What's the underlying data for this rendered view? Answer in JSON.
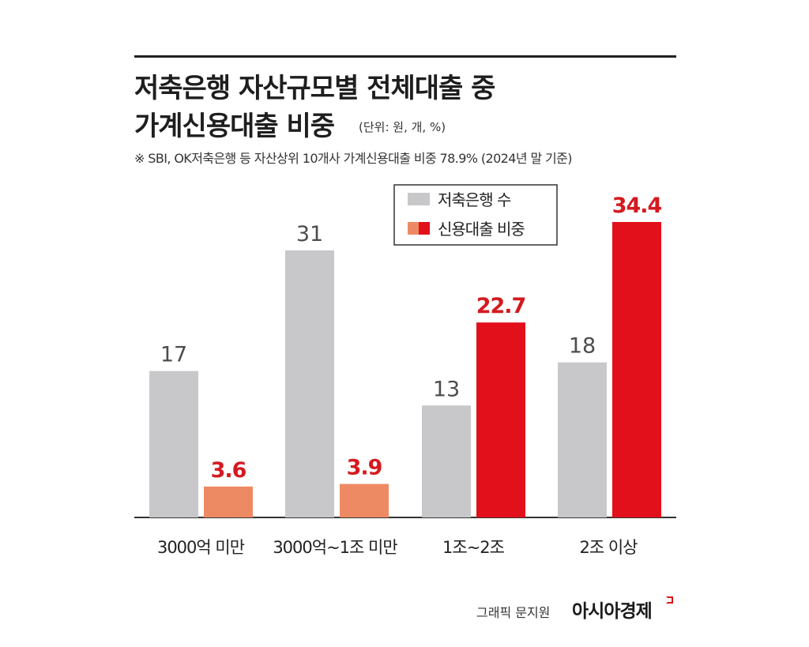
{
  "title_line1": "저축은행 자산규모별 전체대출 중",
  "title_line2": "가계신용대출 비중",
  "unit_note": "(단위: 원, 개, %)",
  "footnote": "※ SBI, OK저축은행 등 자산상위 10개사 가계신용대출 비중 78.9% (2024년 말 기준)",
  "credit": "그래픽 문지원",
  "brand": "아시아경제",
  "colors": {
    "gray_bar": "#c8c8cb",
    "orange_bar": "#ee8a63",
    "red_bar": "#e2101b",
    "red_label": "#d41a1f",
    "gray_label": "#4d4d4d"
  },
  "chart_data": {
    "type": "bar",
    "categories": [
      "3000억 미만",
      "3000억~1조 미만",
      "1조~2조",
      "2조 이상"
    ],
    "series": [
      {
        "name": "저축은행 수",
        "values": [
          17,
          31,
          13,
          18
        ]
      },
      {
        "name": "신용대출 비중",
        "values": [
          3.6,
          3.9,
          22.7,
          34.4
        ]
      }
    ],
    "value_labels": [
      [
        "17",
        "31",
        "13",
        "18"
      ],
      [
        "3.6",
        "3.9",
        "22.7",
        "34.4"
      ]
    ],
    "legend_position": "top-right",
    "grid": false
  }
}
